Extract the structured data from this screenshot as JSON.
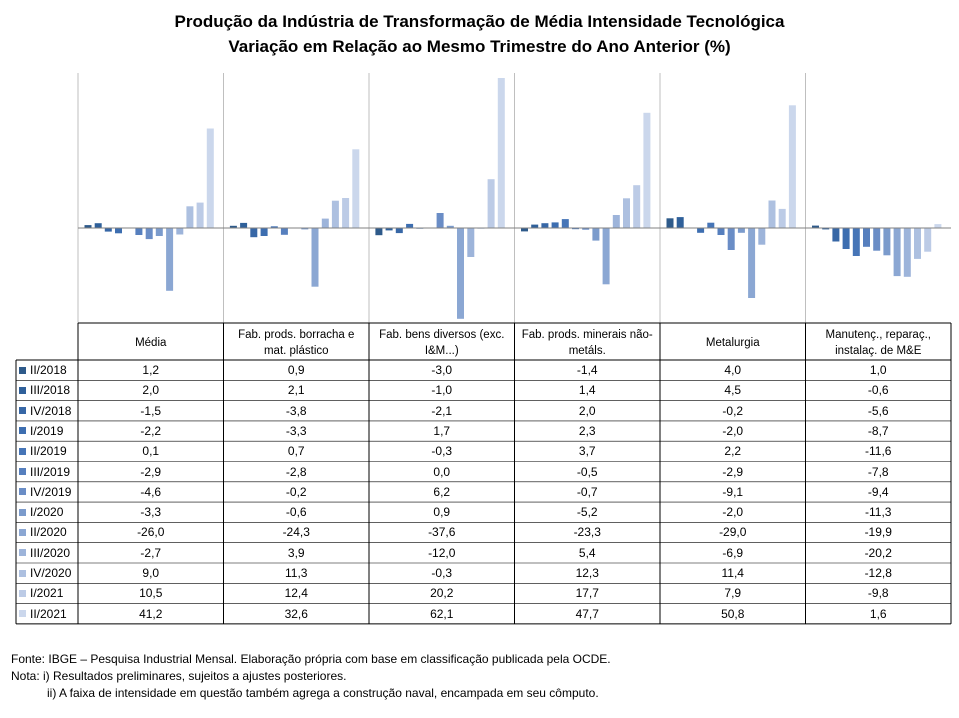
{
  "title_line1": "Produção da Indústria de Transformação de Média Intensidade Tecnológica",
  "title_line2": "Variação em Relação ao Mesmo Trimestre do Ano Anterior (%)",
  "chart_data": {
    "type": "bar",
    "categories": [
      "Média",
      "Fab. prods. borracha e mat. plástico",
      "Fab. bens diversos (exc. I&M...)",
      "Fab. prods. minerais não-metáls.",
      "Metalurgia",
      "Manutenç., reparaç., instalaç. de M&E"
    ],
    "series": [
      {
        "name": "II/2018",
        "color": "#2e5a8a",
        "values": [
          1.2,
          0.9,
          -3.0,
          -1.4,
          4.0,
          1.0
        ],
        "labels": [
          "1,2",
          "0,9",
          "-3,0",
          "-1,4",
          "4,0",
          "1,0"
        ]
      },
      {
        "name": "III/2018",
        "color": "#2f609a",
        "values": [
          2.0,
          2.1,
          -1.0,
          1.4,
          4.5,
          -0.6
        ],
        "labels": [
          "2,0",
          "2,1",
          "-1,0",
          "1,4",
          "4,5",
          "-0,6"
        ]
      },
      {
        "name": "IV/2018",
        "color": "#3767a6",
        "values": [
          -1.5,
          -3.8,
          -2.1,
          2.0,
          -0.2,
          -5.6
        ],
        "labels": [
          "-1,5",
          "-3,8",
          "-2,1",
          "2,0",
          "-0,2",
          "-5,6"
        ]
      },
      {
        "name": "I/2019",
        "color": "#3d6eb0",
        "values": [
          -2.2,
          -3.3,
          1.7,
          2.3,
          -2.0,
          -8.7
        ],
        "labels": [
          "-2,2",
          "-3,3",
          "1,7",
          "2,3",
          "-2,0",
          "-8,7"
        ]
      },
      {
        "name": "II/2019",
        "color": "#4675b7",
        "values": [
          0.1,
          0.7,
          -0.3,
          3.7,
          2.2,
          -11.6
        ],
        "labels": [
          "0,1",
          "0,7",
          "-0,3",
          "3,7",
          "2,2",
          "-11,6"
        ]
      },
      {
        "name": "III/2019",
        "color": "#567fbe",
        "values": [
          -2.9,
          -2.8,
          0.0,
          -0.5,
          -2.9,
          -7.8
        ],
        "labels": [
          "-2,9",
          "-2,8",
          "0,0",
          "-0,5",
          "-2,9",
          "-7,8"
        ]
      },
      {
        "name": "IV/2019",
        "color": "#6a8dc6",
        "values": [
          -4.6,
          -0.2,
          6.2,
          -0.7,
          -9.1,
          -9.4
        ],
        "labels": [
          "-4,6",
          "-0,2",
          "6,2",
          "-0,7",
          "-9,1",
          "-9,4"
        ]
      },
      {
        "name": "I/2020",
        "color": "#7b9bcc",
        "values": [
          -3.3,
          -0.6,
          0.9,
          -5.2,
          -2.0,
          -11.3
        ],
        "labels": [
          "-3,3",
          "-0,6",
          "0,9",
          "-5,2",
          "-2,0",
          "-11,3"
        ]
      },
      {
        "name": "II/2020",
        "color": "#8ba7d3",
        "values": [
          -26.0,
          -24.3,
          -37.6,
          -23.3,
          -29.0,
          -19.9
        ],
        "labels": [
          "-26,0",
          "-24,3",
          "-37,6",
          "-23,3",
          "-29,0",
          "-19,9"
        ]
      },
      {
        "name": "III/2020",
        "color": "#9db4da",
        "values": [
          -2.7,
          3.9,
          -12.0,
          5.4,
          -6.9,
          -20.2
        ],
        "labels": [
          "-2,7",
          "3,9",
          "-12,0",
          "5,4",
          "-6,9",
          "-20,2"
        ]
      },
      {
        "name": "IV/2020",
        "color": "#adc0e0",
        "values": [
          9.0,
          11.3,
          -0.3,
          12.3,
          11.4,
          -12.8
        ],
        "labels": [
          "9,0",
          "11,3",
          "-0,3",
          "12,3",
          "11,4",
          "-12,8"
        ]
      },
      {
        "name": "I/2021",
        "color": "#bccbe6",
        "values": [
          10.5,
          12.4,
          20.2,
          17.7,
          7.9,
          -9.8
        ],
        "labels": [
          "10,5",
          "12,4",
          "20,2",
          "17,7",
          "7,9",
          "-9,8"
        ]
      },
      {
        "name": "II/2021",
        "color": "#cbd7ec",
        "values": [
          41.2,
          32.6,
          62.1,
          47.7,
          50.8,
          1.6
        ],
        "labels": [
          "41,2",
          "32,6",
          "62,1",
          "47,7",
          "50,8",
          "1,6"
        ]
      }
    ],
    "xlabel": "",
    "ylabel": "",
    "ylim": [
      -38,
      62.1
    ],
    "legend": "left",
    "grid": false
  },
  "footer": {
    "fonte": "Fonte: IBGE – Pesquisa Industrial Mensal. Elaboração própria com base em classificação publicada pela OCDE.",
    "nota1": "Nota: i) Resultados preliminares, sujeitos a ajustes posteriores.",
    "nota2": "ii) A faixa de intensidade em questão também agrega a construção naval, encampada em seu cômputo."
  }
}
